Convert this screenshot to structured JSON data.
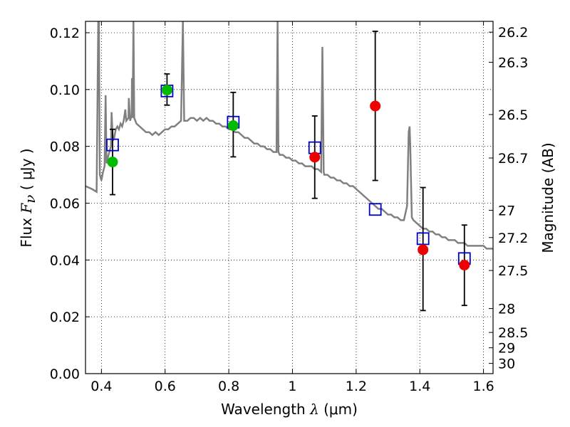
{
  "chart_data": {
    "type": "scatter",
    "xlabel": {
      "prefix": "Wavelength",
      "symbol": "λ",
      "unit": "(μm)"
    },
    "ylabel": {
      "prefix": "Flux",
      "symbol": "F",
      "subscript": "ν",
      "unit": "( μJy )"
    },
    "y2label": "Magnitude (AB)",
    "xlim": [
      0.35,
      1.63
    ],
    "ylim": [
      0.0,
      0.124
    ],
    "x_ticks": [
      0.4,
      0.6,
      0.8,
      1.0,
      1.2,
      1.4,
      1.6
    ],
    "x_tick_labels": [
      "0.4",
      "0.6",
      "0.8",
      "1",
      "1.2",
      "1.4",
      "1.6"
    ],
    "y_ticks": [
      0.0,
      0.02,
      0.04,
      0.06,
      0.08,
      0.1,
      0.12
    ],
    "y_tick_labels": [
      "0.00",
      "0.02",
      "0.04",
      "0.06",
      "0.08",
      "0.10",
      "0.12"
    ],
    "y2_ticks": [
      {
        "label": "26.2",
        "flux": 0.1202
      },
      {
        "label": "26.3",
        "flux": 0.1096
      },
      {
        "label": "26.5",
        "flux": 0.0912
      },
      {
        "label": "26.7",
        "flux": 0.0759
      },
      {
        "label": "27",
        "flux": 0.0575
      },
      {
        "label": "27.2",
        "flux": 0.0479
      },
      {
        "label": "27.5",
        "flux": 0.0363
      },
      {
        "label": "28",
        "flux": 0.0229
      },
      {
        "label": "28.5",
        "flux": 0.0145
      },
      {
        "label": "29",
        "flux": 0.0091
      },
      {
        "label": "30",
        "flux": 0.0036
      }
    ],
    "grid": true,
    "model_spectrum": {
      "color": "#808080",
      "points": [
        [
          0.35,
          0.066
        ],
        [
          0.37,
          0.065
        ],
        [
          0.385,
          0.064
        ],
        [
          0.39,
          0.124
        ],
        [
          0.392,
          0.124
        ],
        [
          0.395,
          0.07
        ],
        [
          0.4,
          0.068
        ],
        [
          0.405,
          0.071
        ],
        [
          0.41,
          0.073
        ],
        [
          0.413,
          0.098
        ],
        [
          0.416,
          0.074
        ],
        [
          0.42,
          0.076
        ],
        [
          0.425,
          0.078
        ],
        [
          0.43,
          0.08
        ],
        [
          0.432,
          0.092
        ],
        [
          0.436,
          0.082
        ],
        [
          0.44,
          0.083
        ],
        [
          0.445,
          0.086
        ],
        [
          0.45,
          0.087
        ],
        [
          0.455,
          0.086
        ],
        [
          0.46,
          0.088
        ],
        [
          0.465,
          0.087
        ],
        [
          0.47,
          0.089
        ],
        [
          0.475,
          0.093
        ],
        [
          0.478,
          0.089
        ],
        [
          0.485,
          0.09
        ],
        [
          0.486,
          0.097
        ],
        [
          0.49,
          0.089
        ],
        [
          0.495,
          0.091
        ],
        [
          0.4959,
          0.104
        ],
        [
          0.498,
          0.09
        ],
        [
          0.5007,
          0.124
        ],
        [
          0.503,
          0.09
        ],
        [
          0.51,
          0.088
        ],
        [
          0.52,
          0.087
        ],
        [
          0.53,
          0.086
        ],
        [
          0.54,
          0.085
        ],
        [
          0.55,
          0.085
        ],
        [
          0.56,
          0.084
        ],
        [
          0.57,
          0.085
        ],
        [
          0.58,
          0.084
        ],
        [
          0.59,
          0.085
        ],
        [
          0.6,
          0.086
        ],
        [
          0.61,
          0.086
        ],
        [
          0.62,
          0.087
        ],
        [
          0.63,
          0.087
        ],
        [
          0.64,
          0.088
        ],
        [
          0.65,
          0.089
        ],
        [
          0.656,
          0.124
        ],
        [
          0.66,
          0.089
        ],
        [
          0.67,
          0.089
        ],
        [
          0.68,
          0.09
        ],
        [
          0.69,
          0.09
        ],
        [
          0.7,
          0.089
        ],
        [
          0.71,
          0.09
        ],
        [
          0.72,
          0.089
        ],
        [
          0.73,
          0.09
        ],
        [
          0.74,
          0.089
        ],
        [
          0.75,
          0.089
        ],
        [
          0.76,
          0.088
        ],
        [
          0.77,
          0.088
        ],
        [
          0.78,
          0.087
        ],
        [
          0.79,
          0.087
        ],
        [
          0.8,
          0.086
        ],
        [
          0.81,
          0.086
        ],
        [
          0.82,
          0.085
        ],
        [
          0.83,
          0.085
        ],
        [
          0.84,
          0.084
        ],
        [
          0.85,
          0.083
        ],
        [
          0.86,
          0.083
        ],
        [
          0.87,
          0.082
        ],
        [
          0.88,
          0.081
        ],
        [
          0.89,
          0.081
        ],
        [
          0.9,
          0.08
        ],
        [
          0.91,
          0.08
        ],
        [
          0.92,
          0.079
        ],
        [
          0.93,
          0.079
        ],
        [
          0.94,
          0.078
        ],
        [
          0.95,
          0.078
        ],
        [
          0.9532,
          0.124
        ],
        [
          0.956,
          0.078
        ],
        [
          0.96,
          0.077
        ],
        [
          0.97,
          0.077
        ],
        [
          0.98,
          0.076
        ],
        [
          0.99,
          0.076
        ],
        [
          1.0,
          0.075
        ],
        [
          1.01,
          0.075
        ],
        [
          1.02,
          0.074
        ],
        [
          1.03,
          0.074
        ],
        [
          1.04,
          0.073
        ],
        [
          1.05,
          0.073
        ],
        [
          1.06,
          0.073
        ],
        [
          1.07,
          0.072
        ],
        [
          1.08,
          0.072
        ],
        [
          1.09,
          0.071
        ],
        [
          1.094,
          0.115
        ],
        [
          1.098,
          0.071
        ],
        [
          1.1,
          0.07
        ],
        [
          1.11,
          0.07
        ],
        [
          1.12,
          0.069
        ],
        [
          1.13,
          0.069
        ],
        [
          1.14,
          0.068
        ],
        [
          1.15,
          0.068
        ],
        [
          1.16,
          0.067
        ],
        [
          1.17,
          0.067
        ],
        [
          1.18,
          0.066
        ],
        [
          1.19,
          0.066
        ],
        [
          1.2,
          0.065
        ],
        [
          1.21,
          0.064
        ],
        [
          1.22,
          0.063
        ],
        [
          1.23,
          0.062
        ],
        [
          1.24,
          0.061
        ],
        [
          1.25,
          0.06
        ],
        [
          1.26,
          0.059
        ],
        [
          1.27,
          0.058
        ],
        [
          1.28,
          0.058
        ],
        [
          1.29,
          0.057
        ],
        [
          1.3,
          0.056
        ],
        [
          1.31,
          0.056
        ],
        [
          1.32,
          0.055
        ],
        [
          1.33,
          0.055
        ],
        [
          1.34,
          0.054
        ],
        [
          1.35,
          0.054
        ],
        [
          1.36,
          0.059
        ],
        [
          1.365,
          0.085
        ],
        [
          1.368,
          0.087
        ],
        [
          1.37,
          0.08
        ],
        [
          1.375,
          0.055
        ],
        [
          1.38,
          0.054
        ],
        [
          1.39,
          0.053
        ],
        [
          1.4,
          0.052
        ],
        [
          1.41,
          0.051
        ],
        [
          1.42,
          0.051
        ],
        [
          1.43,
          0.05
        ],
        [
          1.44,
          0.05
        ],
        [
          1.45,
          0.049
        ],
        [
          1.46,
          0.049
        ],
        [
          1.47,
          0.048
        ],
        [
          1.48,
          0.048
        ],
        [
          1.49,
          0.047
        ],
        [
          1.5,
          0.047
        ],
        [
          1.51,
          0.047
        ],
        [
          1.52,
          0.046
        ],
        [
          1.53,
          0.046
        ],
        [
          1.54,
          0.046
        ],
        [
          1.55,
          0.045
        ],
        [
          1.56,
          0.045
        ],
        [
          1.57,
          0.045
        ],
        [
          1.58,
          0.045
        ],
        [
          1.59,
          0.045
        ],
        [
          1.6,
          0.045
        ],
        [
          1.61,
          0.044
        ],
        [
          1.63,
          0.044
        ]
      ]
    },
    "model_photometry": {
      "marker": "open-square",
      "color": "#0000cc",
      "points": [
        {
          "x": 0.435,
          "y": 0.0805
        },
        {
          "x": 0.606,
          "y": 0.0995
        },
        {
          "x": 0.814,
          "y": 0.0885
        },
        {
          "x": 1.07,
          "y": 0.0795
        },
        {
          "x": 1.26,
          "y": 0.0578
        },
        {
          "x": 1.41,
          "y": 0.0475
        },
        {
          "x": 1.54,
          "y": 0.0405
        }
      ]
    },
    "observed_detections": {
      "marker": "filled-circle",
      "color": "#00bb00",
      "points": [
        {
          "x": 0.435,
          "y": 0.0745,
          "err_low": 0.0115,
          "err_high": 0.0115
        },
        {
          "x": 0.606,
          "y": 0.0998,
          "err_low": 0.0053,
          "err_high": 0.0057
        },
        {
          "x": 0.814,
          "y": 0.0873,
          "err_low": 0.011,
          "err_high": 0.0117
        }
      ]
    },
    "observed_other": {
      "marker": "filled-circle",
      "color": "#ee0000",
      "points": [
        {
          "x": 1.07,
          "y": 0.0762,
          "err_low": 0.0145,
          "err_high": 0.0145
        },
        {
          "x": 1.26,
          "y": 0.0942,
          "err_low": 0.0262,
          "err_high": 0.0263
        },
        {
          "x": 1.41,
          "y": 0.0436,
          "err_low": 0.0214,
          "err_high": 0.0219
        },
        {
          "x": 1.54,
          "y": 0.0382,
          "err_low": 0.0142,
          "err_high": 0.0141
        }
      ]
    }
  }
}
